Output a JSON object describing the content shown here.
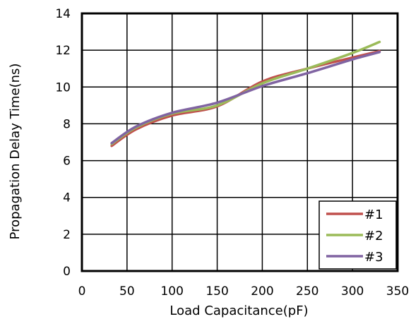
{
  "chart_data": {
    "type": "line",
    "title": "",
    "xlabel": "Load Capacitance(pF)",
    "ylabel": "Propagation Delay Time(ns)",
    "xlim": [
      0,
      350
    ],
    "ylim": [
      0,
      14
    ],
    "xticks": [
      0,
      50,
      100,
      150,
      200,
      250,
      300,
      350
    ],
    "yticks": [
      0,
      2,
      4,
      6,
      8,
      10,
      12,
      14
    ],
    "grid": true,
    "legend_position": "bottom-right",
    "series": [
      {
        "name": "#1",
        "color": "#c0504d",
        "x": [
          33,
          60,
          100,
          150,
          200,
          250,
          300,
          330
        ],
        "y": [
          6.8,
          7.7,
          8.45,
          8.95,
          10.3,
          11.0,
          11.6,
          11.95
        ]
      },
      {
        "name": "#2",
        "color": "#9bbb59",
        "x": [
          33,
          60,
          100,
          150,
          200,
          250,
          300,
          330
        ],
        "y": [
          6.9,
          7.8,
          8.55,
          9.0,
          10.2,
          11.0,
          11.85,
          12.45
        ]
      },
      {
        "name": "#3",
        "color": "#8064a2",
        "x": [
          33,
          60,
          100,
          150,
          200,
          250,
          300,
          330
        ],
        "y": [
          6.95,
          7.85,
          8.6,
          9.15,
          10.05,
          10.75,
          11.5,
          11.9
        ]
      }
    ]
  }
}
